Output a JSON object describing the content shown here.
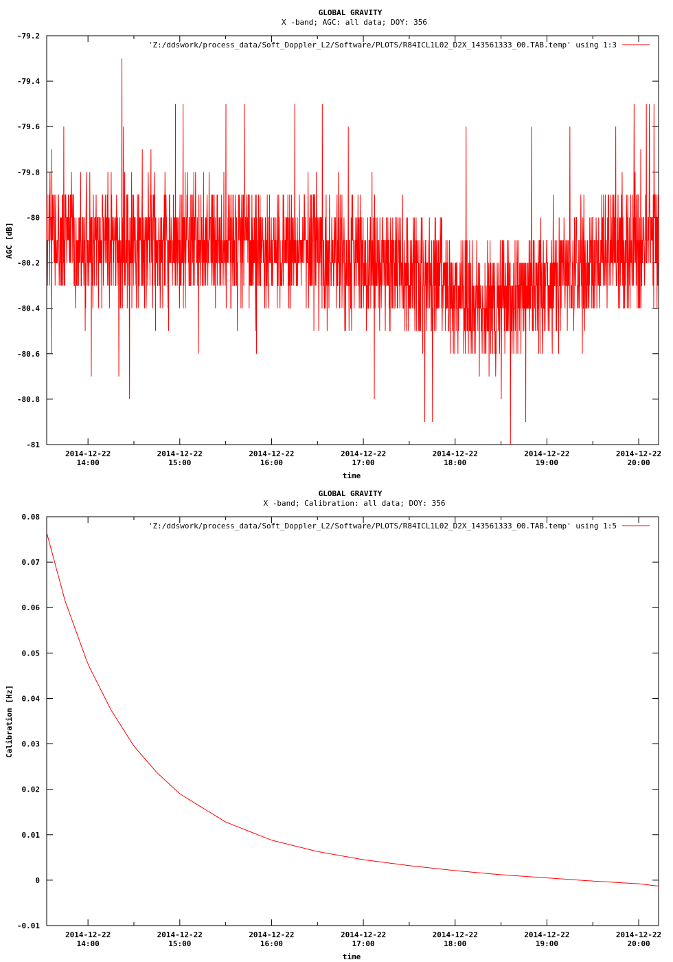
{
  "colors": {
    "series": "#ff0000",
    "axis": "#000000",
    "background": "#ffffff"
  },
  "chart_data": [
    {
      "type": "line",
      "title": "GLOBAL GRAVITY",
      "subtitle": "X -band; AGC: all data; DOY: 356",
      "xlabel": "time",
      "ylabel": "AGC [dB]",
      "ylim": [
        -81,
        -79.2
      ],
      "yticks": [
        "-79.2",
        "-79.4",
        "-79.6",
        "-79.8",
        "-80",
        "-80.2",
        "-80.4",
        "-80.6",
        "-80.8",
        "-81"
      ],
      "x_date_label": "2014-12-22",
      "xticks": [
        "14:00",
        "15:00",
        "16:00",
        "17:00",
        "18:00",
        "19:00",
        "20:00"
      ],
      "xlim": [
        "13:33",
        "20:13"
      ],
      "legend": {
        "position": "top-right",
        "label": "'Z:/ddswork/process_data/Soft_Doppler_L2/Software/PLOTS/R84ICL1L02_D2X_143561333_00.TAB.temp' using 1:3"
      },
      "grid": false,
      "series": [
        {
          "style": "noisy",
          "sample_step_seconds": 10,
          "mean_trend": [
            [
              "13:33",
              -80.12
            ],
            [
              "15:00",
              -80.1
            ],
            [
              "16:00",
              -80.12
            ],
            [
              "17:00",
              -80.18
            ],
            [
              "17:30",
              -80.25
            ],
            [
              "18:00",
              -80.32
            ],
            [
              "18:30",
              -80.4
            ],
            [
              "19:00",
              -80.3
            ],
            [
              "19:30",
              -80.18
            ],
            [
              "20:13",
              -80.08
            ]
          ],
          "spread_db": 0.2,
          "quantization_db": 0.1,
          "extremes": [
            [
              "13:36",
              -80.6
            ],
            [
              "13:35",
              -79.7
            ],
            [
              "13:44",
              -79.6
            ],
            [
              "14:02",
              -80.7
            ],
            [
              "14:20",
              -80.7
            ],
            [
              "14:22",
              -79.3
            ],
            [
              "14:23",
              -79.6
            ],
            [
              "14:27",
              -80.8
            ],
            [
              "14:57",
              -79.5
            ],
            [
              "15:02",
              -79.5
            ],
            [
              "15:12",
              -80.6
            ],
            [
              "15:30",
              -79.5
            ],
            [
              "15:42",
              -79.5
            ],
            [
              "15:50",
              -80.6
            ],
            [
              "16:15",
              -79.5
            ],
            [
              "16:33",
              -79.5
            ],
            [
              "16:50",
              -79.6
            ],
            [
              "17:07",
              -80.8
            ],
            [
              "17:40",
              -80.9
            ],
            [
              "17:45",
              -80.9
            ],
            [
              "18:07",
              -79.6
            ],
            [
              "18:22",
              -80.7
            ],
            [
              "18:30",
              -80.8
            ],
            [
              "18:36",
              -81.0
            ],
            [
              "18:46",
              -80.9
            ],
            [
              "18:50",
              -79.6
            ],
            [
              "19:15",
              -79.6
            ],
            [
              "19:45",
              -79.6
            ],
            [
              "19:57",
              -79.5
            ],
            [
              "20:05",
              -79.5
            ],
            [
              "20:07",
              -79.5
            ],
            [
              "20:10",
              -79.5
            ]
          ]
        }
      ]
    },
    {
      "type": "line",
      "title": "GLOBAL GRAVITY",
      "subtitle": "X -band; Calibration: all data; DOY: 356",
      "xlabel": "time",
      "ylabel": "Calibration [Hz]",
      "ylim": [
        -0.01,
        0.08
      ],
      "yticks": [
        "0.08",
        "0.07",
        "0.06",
        "0.05",
        "0.04",
        "0.03",
        "0.02",
        "0.01",
        "0",
        "-0.01"
      ],
      "x_date_label": "2014-12-22",
      "xticks": [
        "14:00",
        "15:00",
        "16:00",
        "17:00",
        "18:00",
        "19:00",
        "20:00"
      ],
      "xlim": [
        "13:33",
        "20:13"
      ],
      "legend": {
        "position": "top-right",
        "label": "'Z:/ddswork/process_data/Soft_Doppler_L2/Software/PLOTS/R84ICL1L02_D2X_143561333_00.TAB.temp' using 1:5"
      },
      "grid": false,
      "series": [
        {
          "style": "smooth",
          "points": [
            [
              "13:33",
              0.0765
            ],
            [
              "13:45",
              0.0615
            ],
            [
              "14:00",
              0.0475
            ],
            [
              "14:15",
              0.0375
            ],
            [
              "14:30",
              0.0295
            ],
            [
              "14:45",
              0.0237
            ],
            [
              "15:00",
              0.019
            ],
            [
              "15:30",
              0.0128
            ],
            [
              "16:00",
              0.0088
            ],
            [
              "16:30",
              0.0063
            ],
            [
              "17:00",
              0.0045
            ],
            [
              "17:30",
              0.0032
            ],
            [
              "18:00",
              0.0021
            ],
            [
              "18:30",
              0.0012
            ],
            [
              "19:00",
              0.0005
            ],
            [
              "19:30",
              -0.0002
            ],
            [
              "20:00",
              -0.0008
            ],
            [
              "20:13",
              -0.0013
            ]
          ]
        }
      ]
    }
  ]
}
